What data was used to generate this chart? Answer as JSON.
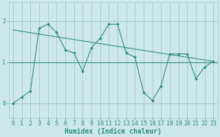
{
  "x_data": [
    0,
    1,
    2,
    3,
    4,
    5,
    6,
    7,
    8,
    9,
    10,
    11,
    12,
    13,
    14,
    15,
    16,
    17,
    18,
    19,
    20,
    21,
    22,
    23
  ],
  "y_data": [
    0.0,
    0.15,
    0.3,
    1.82,
    1.92,
    1.72,
    1.3,
    1.22,
    0.78,
    1.35,
    1.58,
    1.92,
    1.92,
    1.22,
    1.12,
    0.27,
    0.07,
    0.42,
    1.2,
    1.2,
    1.2,
    0.6,
    0.88,
    1.02
  ],
  "trend_x": [
    0,
    23
  ],
  "trend_y": [
    1.78,
    1.02
  ],
  "hline_y": 1.0,
  "line_color": "#2a8b7a",
  "trend_color": "#2a8b7a",
  "hline_color": "#2a8b7a",
  "bg_color": "#cce8e8",
  "grid_color": "#aac8c8",
  "xlabel": "Humidex (Indice chaleur)",
  "yticks": [
    0,
    1,
    2
  ],
  "xticks": [
    0,
    1,
    2,
    3,
    4,
    5,
    6,
    7,
    8,
    9,
    10,
    11,
    12,
    13,
    14,
    15,
    16,
    17,
    18,
    19,
    20,
    21,
    22,
    23
  ],
  "xlim": [
    -0.5,
    23.5
  ],
  "ylim": [
    -0.35,
    2.45
  ],
  "xlabel_fontsize": 7,
  "tick_fontsize": 6
}
